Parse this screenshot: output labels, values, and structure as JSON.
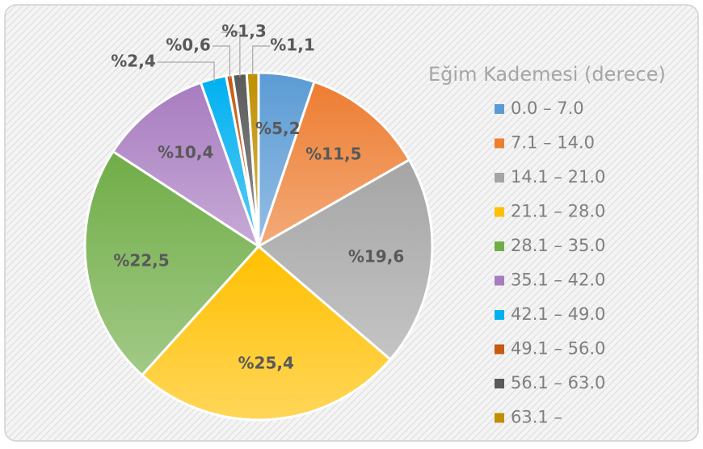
{
  "chart_data": {
    "type": "pie",
    "legend_title": "Eğim Kademesi (derece)",
    "categories": [
      "0.0 – 7.0",
      "7.1 – 14.0",
      "14.1 – 21.0",
      "21.1 – 28.0",
      "28.1 – 35.0",
      "35.1 – 42.0",
      "42.1 – 49.0",
      "49.1 – 56.0",
      "56.1 – 63.0",
      "63.1 –"
    ],
    "values": [
      5.2,
      11.5,
      19.6,
      25.4,
      22.5,
      10.4,
      2.4,
      0.6,
      1.3,
      1.1
    ],
    "value_labels": [
      "%5,2",
      "%11,5",
      "%19,6",
      "%25,4",
      "%22,5",
      "%10,4",
      "%2,4",
      "%0,6",
      "%1,3",
      "%1,1"
    ],
    "colors": [
      "#5b9bd5",
      "#ed7d31",
      "#a5a5a5",
      "#ffc000",
      "#70ad47",
      "#a87cc0",
      "#00b0f0",
      "#c55a11",
      "#595959",
      "#bf9000"
    ],
    "legend": "right"
  }
}
